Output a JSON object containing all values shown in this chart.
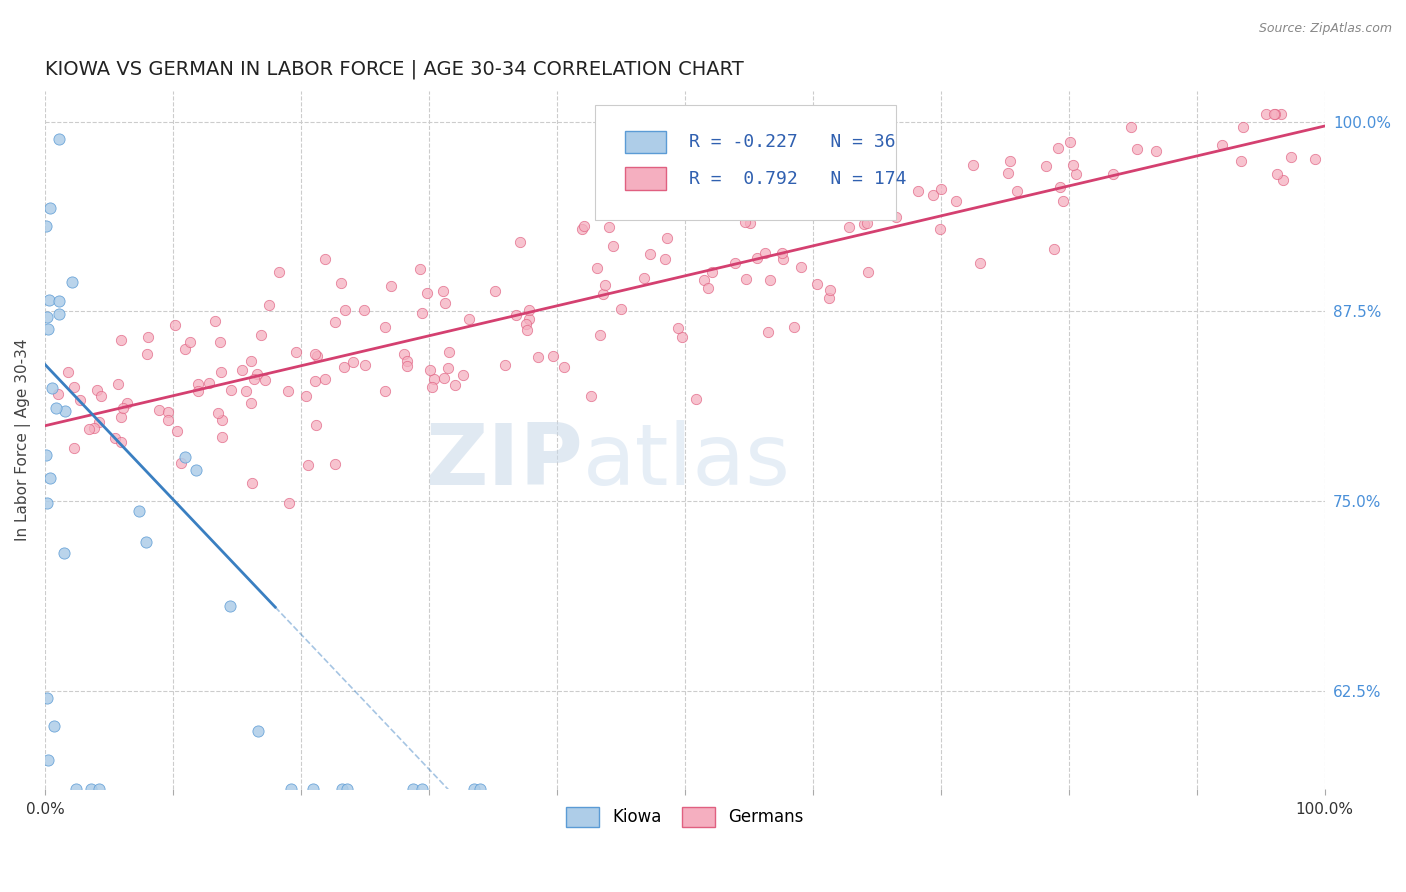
{
  "title": "KIOWA VS GERMAN IN LABOR FORCE | AGE 30-34 CORRELATION CHART",
  "source_text": "Source: ZipAtlas.com",
  "ylabel": "In Labor Force | Age 30-34",
  "xlim": [
    0.0,
    1.0
  ],
  "ylim": [
    0.56,
    1.02
  ],
  "ytick_right_values": [
    0.625,
    0.75,
    0.875,
    1.0
  ],
  "ytick_right_labels": [
    "62.5%",
    "75.0%",
    "87.5%",
    "100.0%"
  ],
  "kiowa_color": "#aecde8",
  "german_color": "#f5afc0",
  "kiowa_edge_color": "#5b9bd5",
  "german_edge_color": "#e06080",
  "kiowa_line_color": "#3a7fc1",
  "german_line_color": "#d44070",
  "kiowa_R": -0.227,
  "kiowa_N": 36,
  "german_R": 0.792,
  "german_N": 174,
  "legend_label_kiowa": "Kiowa",
  "legend_label_german": "Germans",
  "watermark_zip": "ZIP",
  "watermark_atlas": "atlas",
  "background_color": "#ffffff",
  "grid_color": "#cccccc",
  "title_fontsize": 14,
  "axis_label_fontsize": 11,
  "tick_fontsize": 11,
  "legend_fontsize": 13,
  "right_tick_color": "#4a90d9"
}
